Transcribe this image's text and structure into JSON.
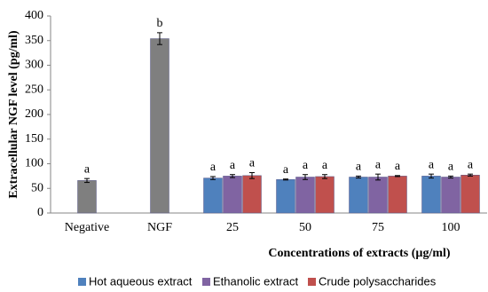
{
  "chart_data": {
    "type": "bar",
    "ylabel": "Extracellular NGF level (pg/ml)",
    "xlabel": "Concentrations of extracts (µg/ml)",
    "categories": [
      "Negative",
      "NGF",
      "25",
      "50",
      "75",
      "100"
    ],
    "ylim": [
      0,
      400
    ],
    "yticks": [
      0,
      50,
      100,
      150,
      200,
      250,
      300,
      350,
      400
    ],
    "control": {
      "color": "#7f7f7f",
      "values": [
        66,
        354,
        null,
        null,
        null,
        null
      ],
      "errors": [
        4,
        12,
        null,
        null,
        null,
        null
      ],
      "letters": [
        "a",
        "b",
        null,
        null,
        null,
        null
      ]
    },
    "series": [
      {
        "name": "Hot aqueous extract",
        "color": "#4f81bd",
        "values": [
          null,
          null,
          71,
          68,
          73,
          75
        ],
        "errors": [
          null,
          null,
          3,
          1,
          2,
          4
        ],
        "letters": [
          null,
          null,
          "a",
          "a",
          "a",
          "a"
        ]
      },
      {
        "name": "Ethanolic extract",
        "color": "#8064a2",
        "values": [
          null,
          null,
          75,
          73,
          73,
          73
        ],
        "errors": [
          null,
          null,
          3,
          5,
          6,
          2
        ],
        "letters": [
          null,
          null,
          "a",
          "a",
          "a",
          "a"
        ]
      },
      {
        "name": "Crude polysaccharides",
        "color": "#c0504d",
        "values": [
          null,
          null,
          76,
          74,
          75,
          77
        ],
        "errors": [
          null,
          null,
          6,
          4,
          1,
          2
        ],
        "letters": [
          null,
          null,
          "a",
          "a",
          "a",
          "a"
        ]
      }
    ]
  }
}
